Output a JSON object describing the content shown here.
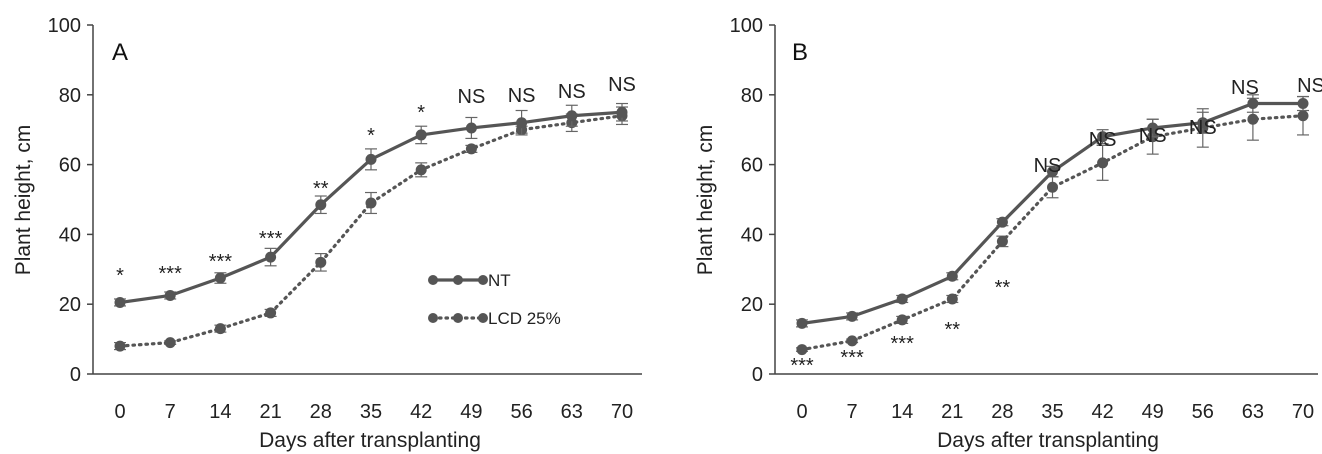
{
  "chart_data": [
    {
      "type": "line",
      "panel_label": "A",
      "xlabel": "Days after transplanting",
      "ylabel": "Plant height, cm",
      "x": [
        0,
        7,
        14,
        21,
        28,
        35,
        42,
        49,
        56,
        63,
        70
      ],
      "x_tick_labels": [
        "0",
        "7",
        "14",
        "21",
        "28",
        "35",
        "42",
        "49",
        "56",
        "63",
        "70"
      ],
      "ylim": [
        0,
        100
      ],
      "y_ticks": [
        0,
        20,
        40,
        60,
        80,
        100
      ],
      "y_tick_labels": [
        "0",
        "20",
        "40",
        "60",
        "80",
        "100"
      ],
      "grid": false,
      "legend_position": "center-right",
      "series": [
        {
          "name": "NT",
          "style": "solid",
          "color": "#555555",
          "values": [
            20.5,
            22.5,
            27.5,
            33.5,
            48.5,
            61.5,
            68.5,
            70.5,
            72.0,
            74.0,
            75.0
          ],
          "error": [
            1.0,
            1.0,
            1.5,
            2.5,
            2.5,
            3.0,
            2.5,
            3.0,
            3.5,
            3.0,
            2.5
          ]
        },
        {
          "name": "LCD 25%",
          "style": "dotted",
          "color": "#555555",
          "values": [
            8.0,
            9.0,
            13.0,
            17.5,
            32.0,
            49.0,
            58.5,
            64.5,
            70.0,
            72.0,
            74.0
          ],
          "error": [
            1.0,
            0.5,
            1.0,
            1.0,
            2.5,
            3.0,
            2.0,
            1.0,
            1.0,
            2.5,
            2.5
          ]
        }
      ],
      "significance": [
        "*",
        "***",
        "***",
        "***",
        "**",
        "*",
        "*",
        "NS",
        "NS",
        "NS",
        "NS"
      ]
    },
    {
      "type": "line",
      "panel_label": "B",
      "xlabel": "Days after transplanting",
      "ylabel": "Plant height, cm",
      "x": [
        0,
        7,
        14,
        21,
        28,
        35,
        42,
        49,
        56,
        63,
        70
      ],
      "x_tick_labels": [
        "0",
        "7",
        "14",
        "21",
        "28",
        "35",
        "42",
        "49",
        "56",
        "63",
        "70"
      ],
      "ylim": [
        0,
        100
      ],
      "y_ticks": [
        0,
        20,
        40,
        60,
        80,
        100
      ],
      "y_tick_labels": [
        "0",
        "20",
        "40",
        "60",
        "80",
        "100"
      ],
      "grid": false,
      "series": [
        {
          "name": "NT",
          "style": "solid",
          "color": "#555555",
          "values": [
            14.5,
            16.5,
            21.5,
            28.0,
            43.5,
            58.0,
            68.0,
            70.5,
            72.0,
            77.5,
            77.5
          ],
          "error": [
            1.0,
            1.0,
            1.0,
            1.0,
            1.0,
            1.5,
            2.0,
            2.5,
            3.0,
            2.5,
            2.0
          ]
        },
        {
          "name": "LCD 25%",
          "style": "dotted",
          "color": "#555555",
          "values": [
            7.0,
            9.5,
            15.5,
            21.5,
            38.0,
            53.5,
            60.5,
            68.0,
            70.5,
            73.0,
            74.0
          ],
          "error": [
            0.5,
            0.5,
            1.0,
            1.0,
            1.5,
            3.0,
            5.0,
            5.0,
            5.5,
            6.0,
            5.5
          ]
        }
      ],
      "significance": [
        "***",
        "***",
        "***",
        "**",
        "**",
        "NS",
        "NS",
        "NS",
        "NS",
        "NS",
        "NS"
      ]
    }
  ]
}
